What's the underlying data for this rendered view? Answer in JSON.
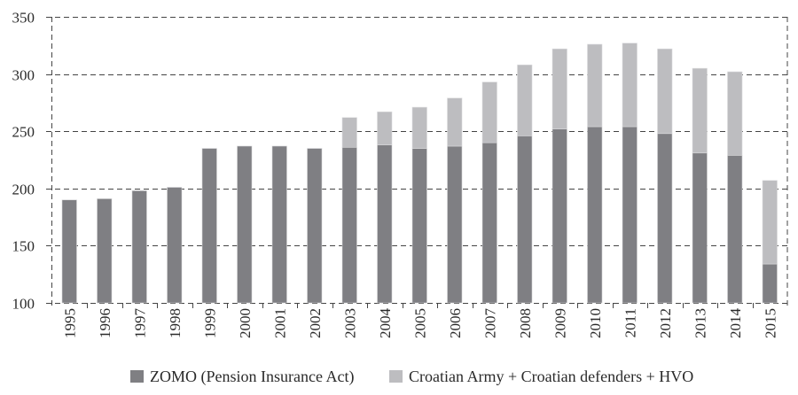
{
  "chart_data": {
    "type": "bar",
    "stacked": true,
    "title": "",
    "xlabel": "",
    "ylabel": "",
    "ylim": [
      100,
      350
    ],
    "yticks": [
      100,
      150,
      200,
      250,
      300,
      350
    ],
    "grid": "horizontal dashed",
    "legend_position": "bottom",
    "categories": [
      "1995",
      "1996",
      "1997",
      "1998",
      "1999",
      "2000",
      "2001",
      "2002",
      "2003",
      "2004",
      "2005",
      "2006",
      "2007",
      "2008",
      "2009",
      "2010",
      "2011",
      "2012",
      "2013",
      "2014",
      "2015"
    ],
    "series": [
      {
        "name": "ZOMO (Pension Insurance Act)",
        "color": "#7f7f83",
        "values": [
          190,
          191,
          198,
          201,
          235,
          237,
          237,
          235,
          236,
          238,
          235,
          237,
          240,
          246,
          252,
          254,
          254,
          248,
          231,
          229,
          134
        ]
      },
      {
        "name": "Croatian Army + Croatian defenders + HVO",
        "color": "#bdbdc0",
        "values": [
          0,
          0,
          0,
          0,
          0,
          0,
          0,
          0,
          26,
          29,
          36,
          42,
          53,
          62,
          70,
          72,
          73,
          74,
          74,
          73,
          73
        ]
      }
    ]
  },
  "legend": {
    "items": [
      {
        "label": "ZOMO (Pension Insurance Act)",
        "color": "#7f7f83"
      },
      {
        "label": "Croatian Army + Croatian defenders + HVO",
        "color": "#bdbdc0"
      }
    ]
  },
  "colors": {
    "grid": "#444444",
    "text": "#2a2a2a"
  }
}
